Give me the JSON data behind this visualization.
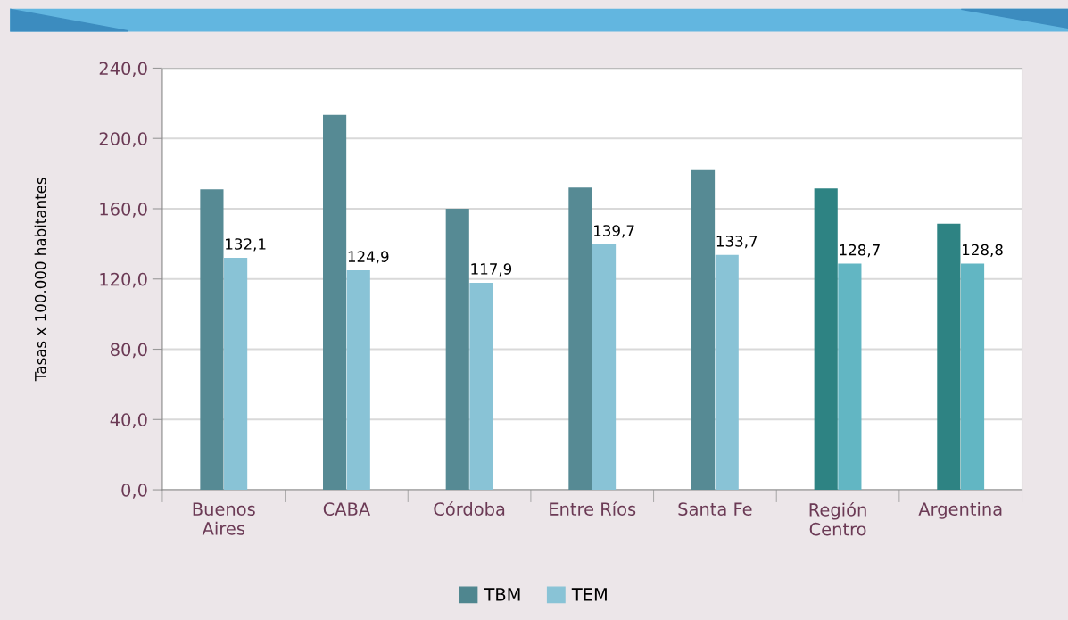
{
  "chart_data": {
    "type": "bar",
    "ylabel": "Tasas x 100.000 habitantes",
    "categories": [
      "Buenos\nAires",
      "CABA",
      "Córdoba",
      "Entre Ríos",
      "Santa Fe",
      "Región\nCentro",
      "Argentina"
    ],
    "series": [
      {
        "name": "TBM",
        "color": "#4f868f",
        "colors": [
          "#568a94",
          "#568a94",
          "#568a94",
          "#568a94",
          "#568a94",
          "#2e8383",
          "#2e8383"
        ],
        "values": [
          171,
          213.5,
          160,
          172,
          182,
          171.5,
          151.5
        ]
      },
      {
        "name": "TEM",
        "color": "#89c3d6",
        "colors": [
          "#89c3d6",
          "#89c3d6",
          "#89c3d6",
          "#89c3d6",
          "#89c3d6",
          "#62b6c3",
          "#62b6c3"
        ],
        "values": [
          132.1,
          124.9,
          117.9,
          139.7,
          133.7,
          128.7,
          128.8
        ],
        "value_labels": [
          "132,1",
          "124,9",
          "117,9",
          "139,7",
          "133,7",
          "128,7",
          "128,8"
        ]
      }
    ],
    "ylim": [
      0,
      240
    ],
    "yticks": [
      {
        "value": 0,
        "label": "0,0"
      },
      {
        "value": 40,
        "label": "40,0"
      },
      {
        "value": 80,
        "label": "80,0"
      },
      {
        "value": 120,
        "label": "120,0"
      },
      {
        "value": 160,
        "label": "160,0"
      },
      {
        "value": 200,
        "label": "200,0"
      },
      {
        "value": 240,
        "label": "240,0"
      }
    ],
    "grid": "y",
    "legend": "bottom"
  }
}
